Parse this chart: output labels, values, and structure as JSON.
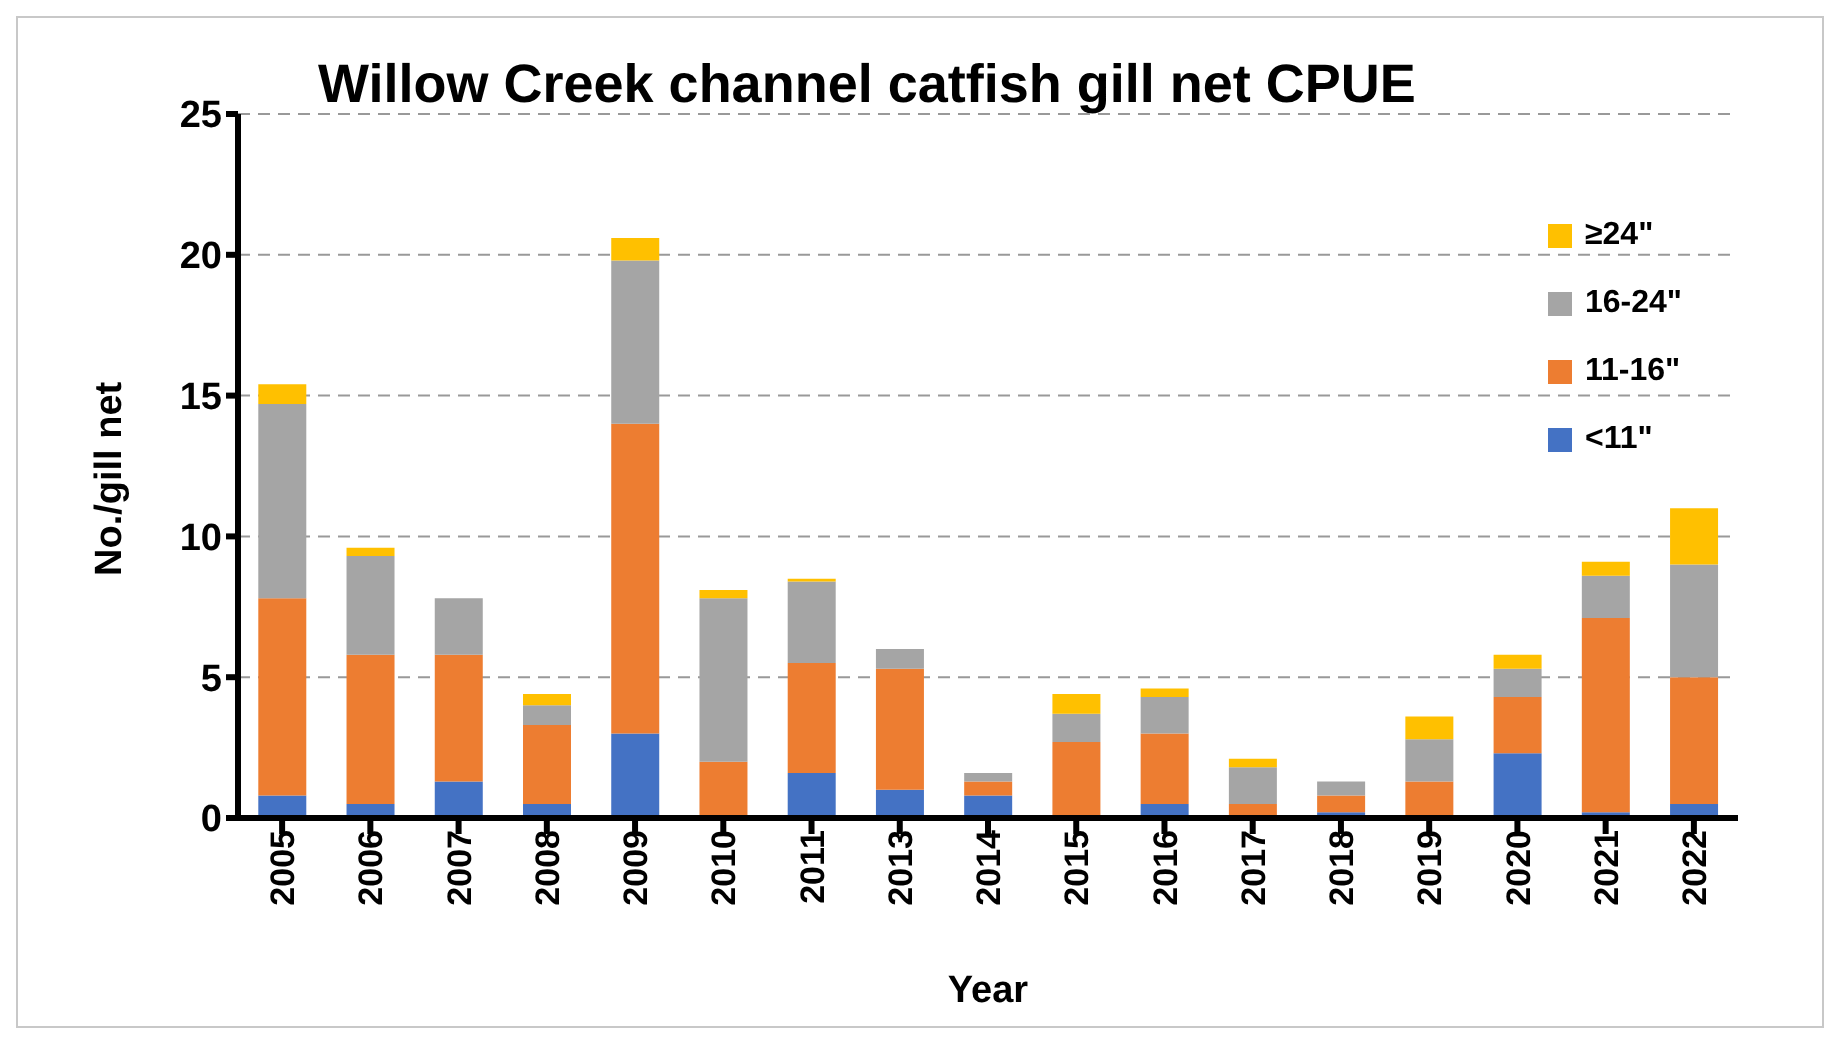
{
  "chart_data": {
    "type": "bar",
    "title": "Willow Creek channel catfish gill net CPUE",
    "xlabel": "Year",
    "ylabel": "No./gill net",
    "categories": [
      "2005",
      "2006",
      "2007",
      "2008",
      "2009",
      "2010",
      "2011",
      "2013",
      "2014",
      "2015",
      "2016",
      "2017",
      "2018",
      "2019",
      "2020",
      "2021",
      "2022"
    ],
    "stacked": true,
    "ylim": [
      0,
      25
    ],
    "yticks": [
      0,
      5,
      10,
      15,
      20,
      25
    ],
    "grid": "y",
    "legend": "top right",
    "series": [
      {
        "name": "<11\"",
        "color": "#4472c4",
        "values": [
          0.8,
          0.5,
          1.3,
          0.5,
          3.0,
          0,
          1.6,
          1.0,
          0.8,
          0,
          0.5,
          0,
          0.2,
          0,
          2.3,
          0.2,
          0.5
        ]
      },
      {
        "name": "11-16\"",
        "color": "#ed7d31",
        "values": [
          7.0,
          5.3,
          4.5,
          2.8,
          11.0,
          2.0,
          3.9,
          4.3,
          0.5,
          2.7,
          2.5,
          0.5,
          0.6,
          1.3,
          2.0,
          6.9,
          4.5
        ]
      },
      {
        "name": "16-24\"",
        "color": "#a5a5a5",
        "values": [
          6.9,
          3.5,
          2.0,
          0.7,
          5.8,
          5.8,
          2.9,
          0.7,
          0.3,
          1.0,
          1.3,
          1.3,
          0.5,
          1.5,
          1.0,
          1.5,
          4.0
        ]
      },
      {
        "name": "≥24\"",
        "color": "#ffc000",
        "values": [
          0.7,
          0.3,
          0,
          0.4,
          0.8,
          0.3,
          0.1,
          0,
          0,
          0.7,
          0.3,
          0.3,
          0,
          0.8,
          0.5,
          0.5,
          2.0
        ]
      }
    ]
  }
}
